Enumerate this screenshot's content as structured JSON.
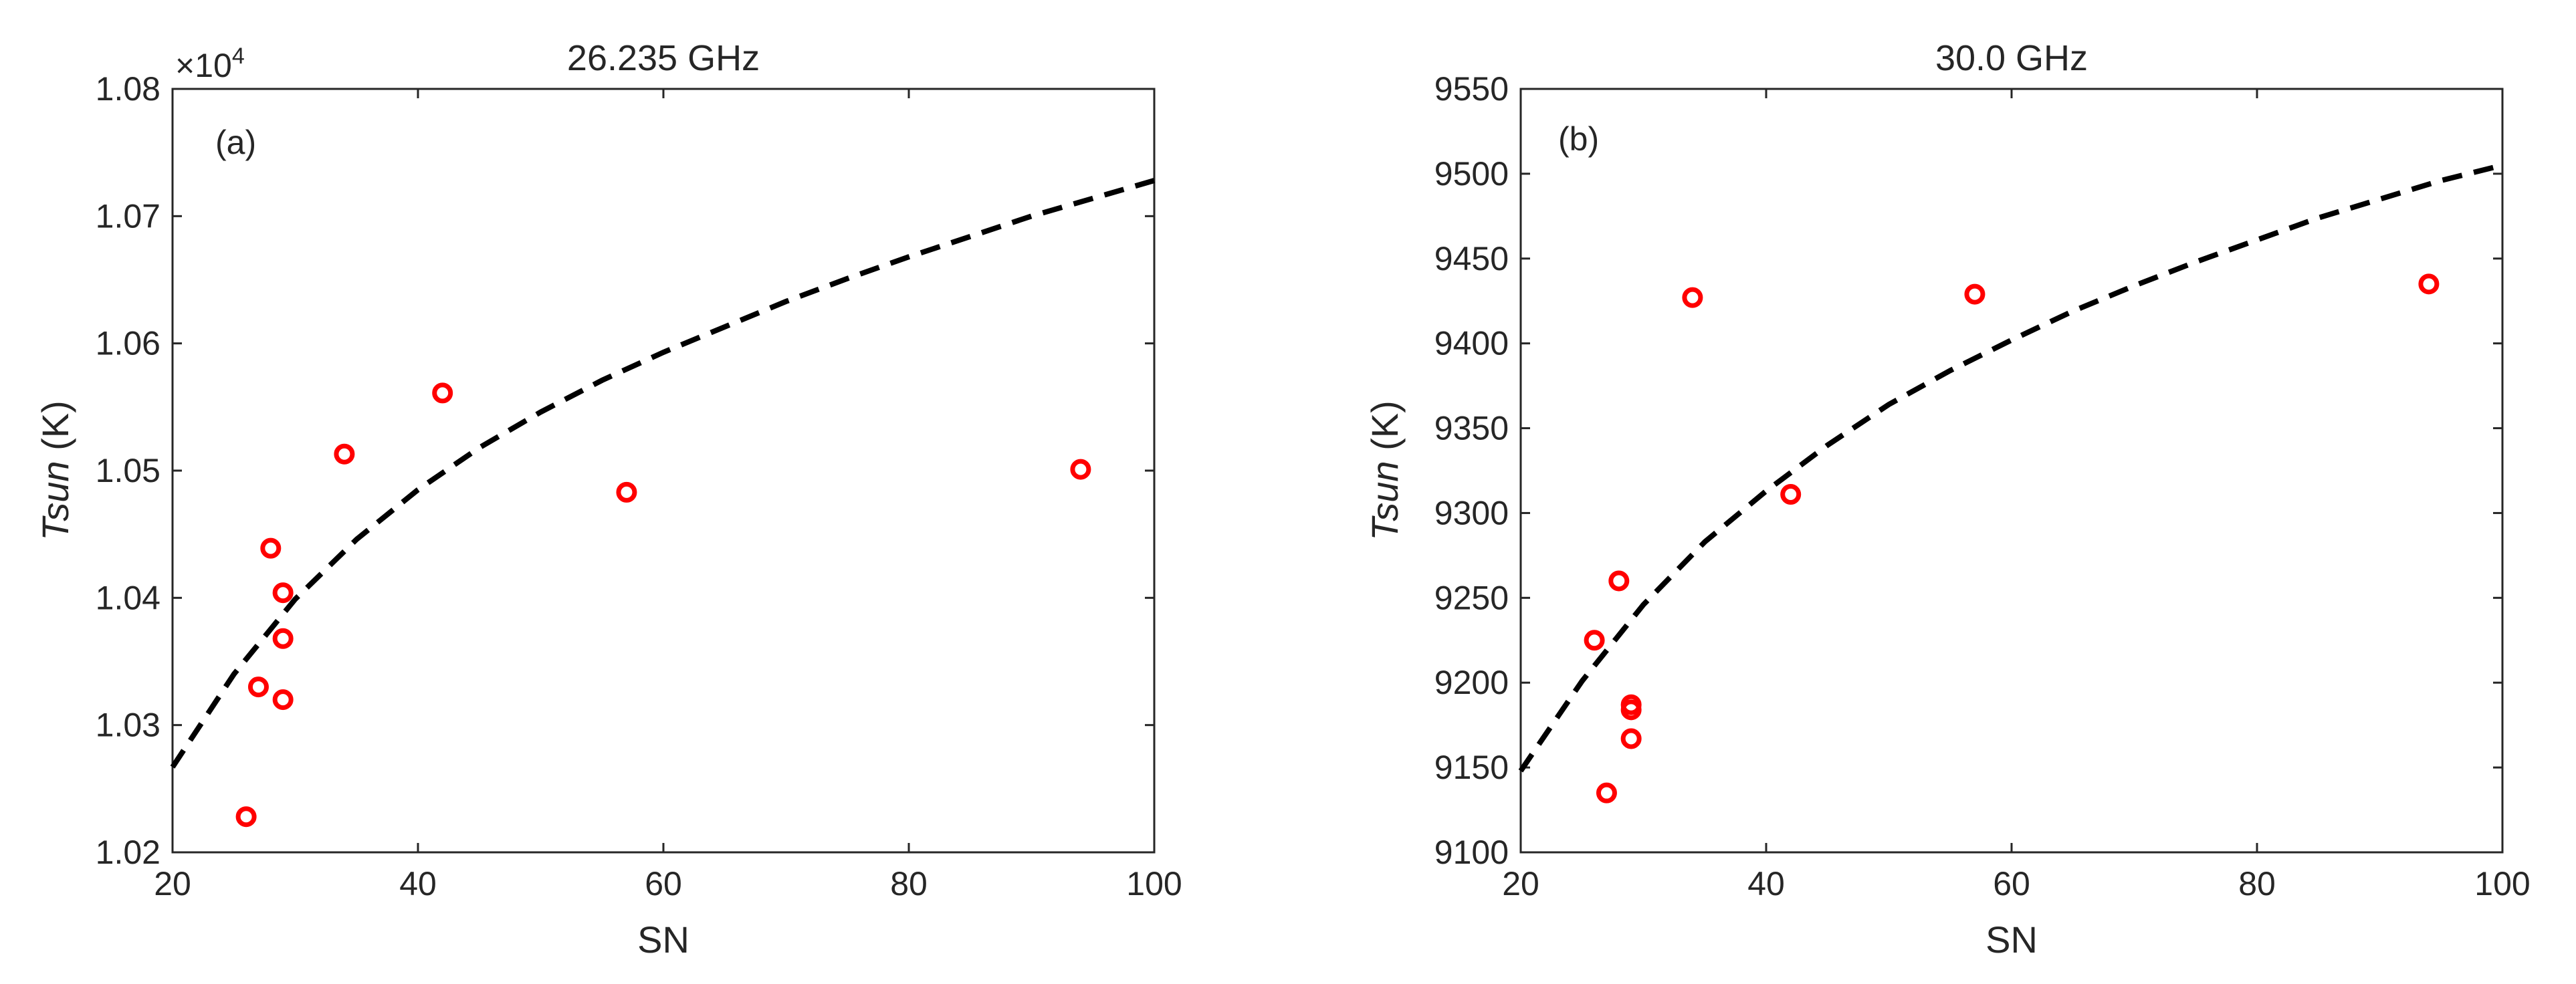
{
  "chart_data": [
    {
      "type": "scatter",
      "title": "26.235 GHz",
      "panel_label": "(a)",
      "xlabel": "SN",
      "ylabel_italic": "Tsun",
      "ylabel_unit": " (K)",
      "exponent_label": "×10",
      "exponent_power": "4",
      "xlim": [
        20,
        100
      ],
      "ylim": [
        10200,
        10800
      ],
      "xticks": [
        20,
        40,
        60,
        80,
        100
      ],
      "yticks": [
        10200,
        10300,
        10400,
        10500,
        10600,
        10700,
        10800
      ],
      "ytick_labels": [
        "1.02",
        "1.03",
        "1.04",
        "1.05",
        "1.06",
        "1.07",
        "1.08"
      ],
      "grid": false,
      "marker_color": "#ff0000",
      "fit_color": "#000000",
      "points": [
        {
          "x": 26,
          "y": 10228
        },
        {
          "x": 27,
          "y": 10330
        },
        {
          "x": 28,
          "y": 10439
        },
        {
          "x": 29,
          "y": 10404
        },
        {
          "x": 29,
          "y": 10368
        },
        {
          "x": 29,
          "y": 10320
        },
        {
          "x": 34,
          "y": 10513
        },
        {
          "x": 42,
          "y": 10561
        },
        {
          "x": 57,
          "y": 10483
        },
        {
          "x": 94,
          "y": 10501
        }
      ],
      "fit": {
        "x": [
          20,
          25,
          30,
          35,
          40,
          45,
          50,
          55,
          60,
          65,
          70,
          75,
          80,
          85,
          90,
          95,
          100
        ],
        "y": [
          10267,
          10340,
          10399,
          10446,
          10485,
          10518,
          10546,
          10571,
          10593,
          10613,
          10633,
          10651,
          10668,
          10684,
          10700,
          10714,
          10728
        ]
      }
    },
    {
      "type": "scatter",
      "title": "30.0 GHz",
      "panel_label": "(b)",
      "xlabel": "SN",
      "ylabel_italic": "Tsun",
      "ylabel_unit": " (K)",
      "xlim": [
        20,
        100
      ],
      "ylim": [
        9100,
        9550
      ],
      "xticks": [
        20,
        40,
        60,
        80,
        100
      ],
      "yticks": [
        9100,
        9150,
        9200,
        9250,
        9300,
        9350,
        9400,
        9450,
        9500,
        9550
      ],
      "ytick_labels": [
        "9100",
        "9150",
        "9200",
        "9250",
        "9300",
        "9350",
        "9400",
        "9450",
        "9500",
        "9550"
      ],
      "grid": false,
      "marker_color": "#ff0000",
      "fit_color": "#000000",
      "points": [
        {
          "x": 26,
          "y": 9225
        },
        {
          "x": 27,
          "y": 9135
        },
        {
          "x": 28,
          "y": 9260
        },
        {
          "x": 29,
          "y": 9187
        },
        {
          "x": 29,
          "y": 9184
        },
        {
          "x": 29,
          "y": 9167
        },
        {
          "x": 34,
          "y": 9427
        },
        {
          "x": 42,
          "y": 9311
        },
        {
          "x": 57,
          "y": 9429
        },
        {
          "x": 94,
          "y": 9435
        }
      ],
      "fit": {
        "x": [
          20,
          25,
          30,
          35,
          40,
          45,
          50,
          55,
          60,
          65,
          70,
          75,
          80,
          85,
          90,
          95,
          100
        ],
        "y": [
          9148,
          9201,
          9246,
          9283,
          9313,
          9340,
          9364,
          9384,
          9402,
          9419,
          9434,
          9448,
          9461,
          9474,
          9485,
          9496,
          9505
        ]
      }
    }
  ]
}
